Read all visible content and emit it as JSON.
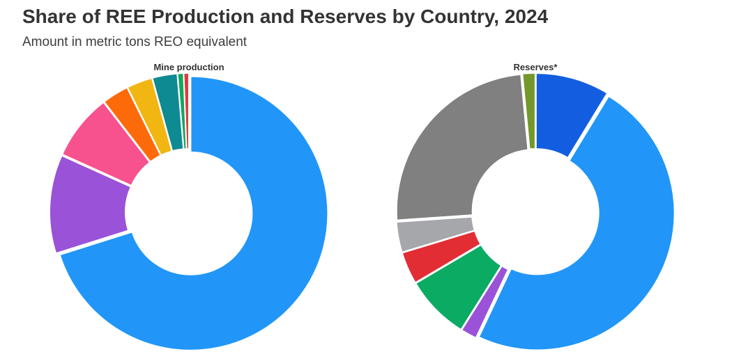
{
  "header": {
    "title": "Share of REE Production and Reserves by Country, 2024",
    "subtitle": "Amount in metric tons REO equivalent"
  },
  "chart_data": [
    {
      "type": "pie",
      "title": "Mine production",
      "donut": true,
      "slices": [
        {
          "value": 69.2,
          "color": "#2196f8"
        },
        {
          "value": 11.5,
          "color": "#9a52d9"
        },
        {
          "value": 7.7,
          "color": "#f7528e"
        },
        {
          "value": 3.1,
          "color": "#fd6a0a"
        },
        {
          "value": 3.0,
          "color": "#f2b612"
        },
        {
          "value": 2.9,
          "color": "#0e8a93"
        },
        {
          "value": 0.7,
          "color": "#14a65e"
        },
        {
          "value": 0.6,
          "color": "#e0393d"
        }
      ]
    },
    {
      "type": "pie",
      "title": "Reserves*",
      "donut": true,
      "slices": [
        {
          "value": 8.7,
          "color": "#135ee0"
        },
        {
          "value": 48.3,
          "color": "#2196f8"
        },
        {
          "value": 1.9,
          "color": "#9a52d9"
        },
        {
          "value": 7.6,
          "color": "#0bab63"
        },
        {
          "value": 3.8,
          "color": "#e32d35"
        },
        {
          "value": 3.6,
          "color": "#a6a7ab"
        },
        {
          "value": 24.6,
          "color": "#808080"
        },
        {
          "value": 1.5,
          "color": "#74982a"
        }
      ]
    }
  ]
}
